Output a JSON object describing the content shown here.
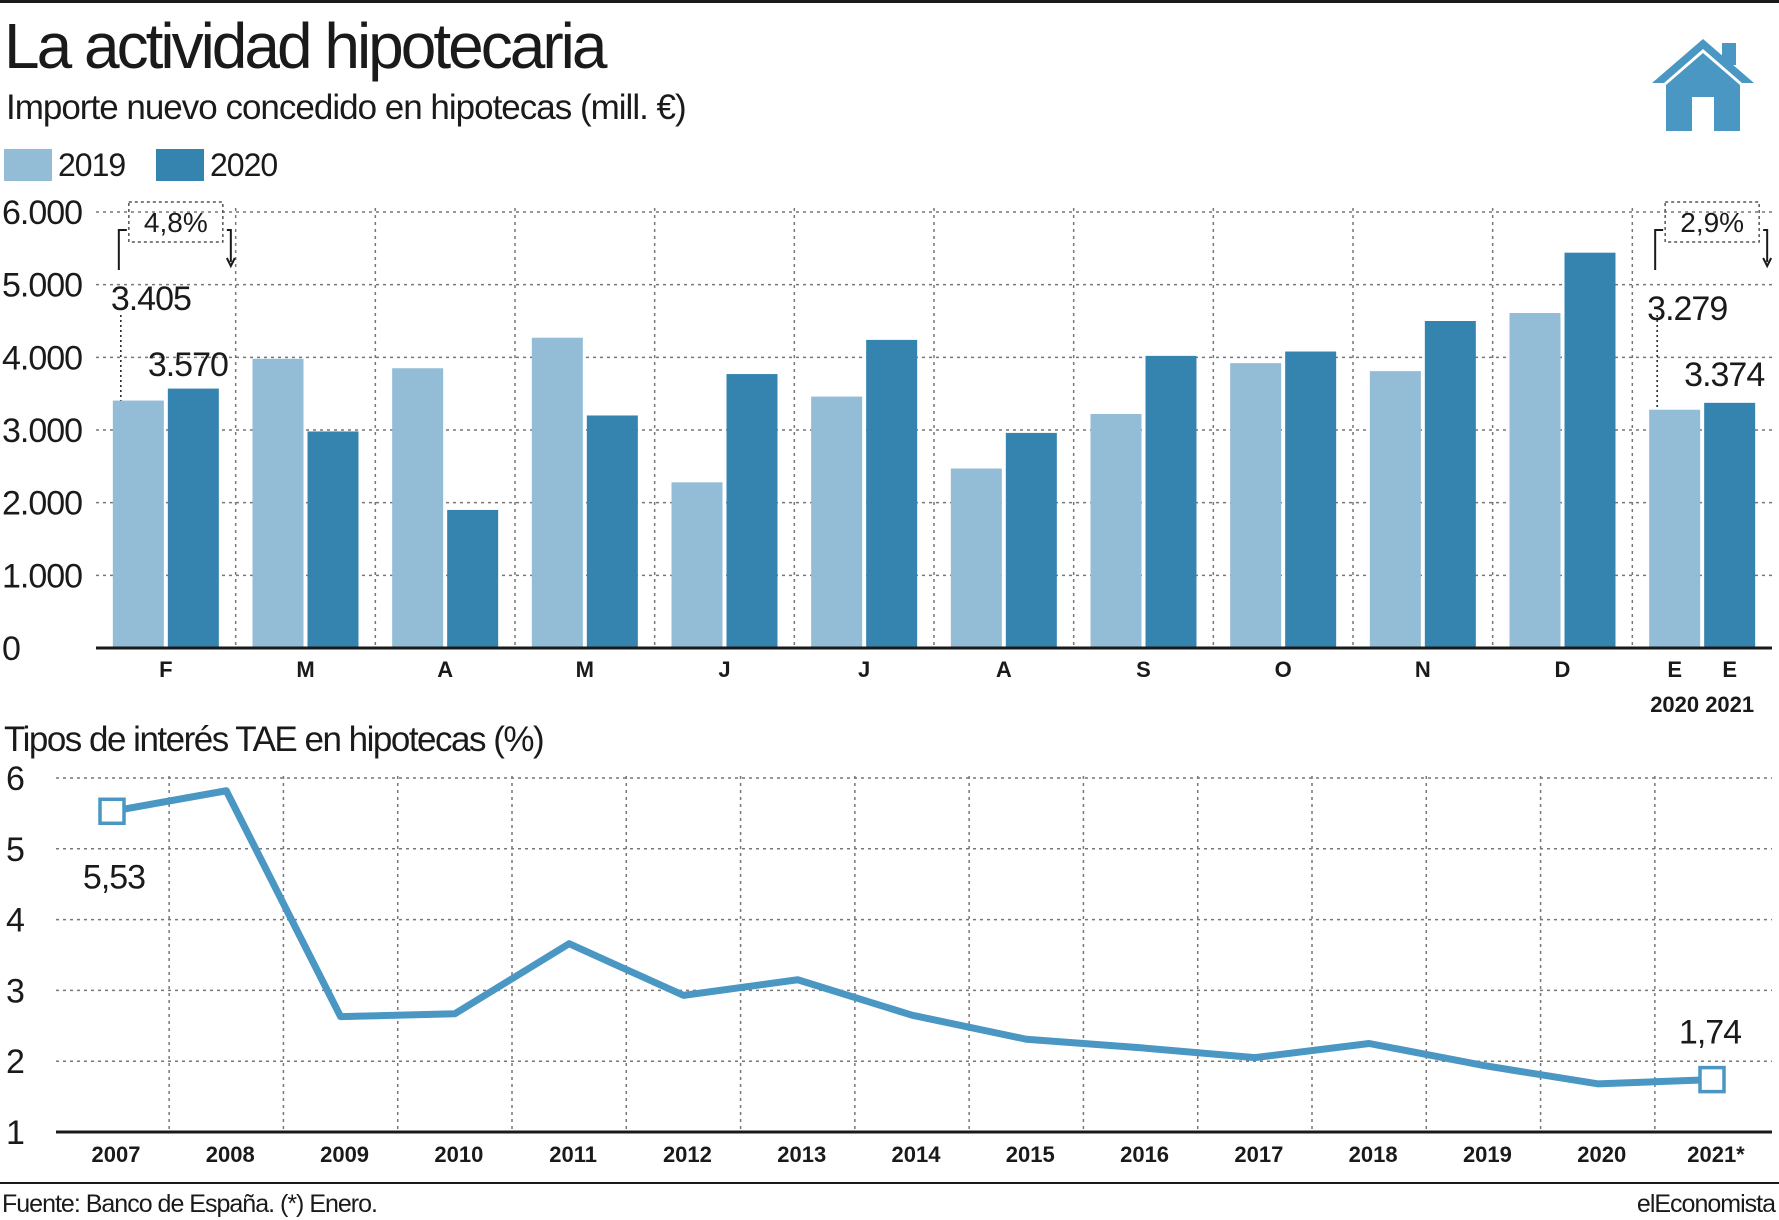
{
  "header": {
    "title": "La actividad hipotecaria",
    "subtitle": "Importe nuevo concedido en hipotecas (mill. €)"
  },
  "legend": [
    {
      "label": "2019",
      "color": "#93bcd6"
    },
    {
      "label": "2020",
      "color": "#3584b0"
    }
  ],
  "icons": {
    "brand_icon": "house-icon"
  },
  "chart_data": [
    {
      "type": "bar",
      "categories": [
        "F",
        "M",
        "A",
        "M",
        "J",
        "J",
        "A",
        "S",
        "O",
        "N",
        "D",
        "E"
      ],
      "category_sublabels": [
        "",
        "",
        "",
        "",
        "",
        "",
        "",
        "",
        "",
        "",
        "",
        ""
      ],
      "series": [
        {
          "name": "2019",
          "color": "#93bcd6",
          "values": [
            3405,
            3980,
            3850,
            4270,
            2280,
            3460,
            2470,
            3220,
            3920,
            3810,
            4610,
            3279
          ]
        },
        {
          "name": "2020",
          "color": "#3584b0",
          "values": [
            3570,
            2980,
            1900,
            3200,
            3770,
            4240,
            2960,
            4020,
            4080,
            4500,
            5440,
            3374
          ]
        }
      ],
      "last_group_labels": [
        {
          "label": "E",
          "sub": "2020"
        },
        {
          "label": "E",
          "sub": "2021"
        }
      ],
      "yticks": [
        "0",
        "1.000",
        "2.000",
        "3.000",
        "4.000",
        "5.000",
        "6.000"
      ],
      "ylim": [
        0,
        6000
      ],
      "grid": true,
      "annotations": [
        {
          "text": "3.405",
          "series": "2019",
          "category_index": 0
        },
        {
          "text": "3.570",
          "series": "2020",
          "category_index": 0
        },
        {
          "text": "4,8%",
          "kind": "change",
          "category_index": 0
        },
        {
          "text": "3.279",
          "series": "2019",
          "category_index": 11
        },
        {
          "text": "3.374",
          "series": "2020",
          "category_index": 11
        },
        {
          "text": "2,9%",
          "kind": "change",
          "category_index": 11
        }
      ]
    },
    {
      "type": "line",
      "title": "Tipos de interés TAE en hipotecas (%)",
      "x": [
        "2007",
        "2008",
        "2009",
        "2010",
        "2011",
        "2012",
        "2013",
        "2014",
        "2015",
        "2016",
        "2017",
        "2018",
        "2019",
        "2020",
        "2021*"
      ],
      "series": [
        {
          "name": "",
          "color": "#4a97c4",
          "values": [
            5.53,
            5.82,
            2.63,
            2.67,
            3.66,
            2.93,
            3.15,
            2.65,
            2.31,
            2.19,
            2.05,
            2.25,
            1.94,
            1.68,
            1.74
          ]
        }
      ],
      "ylim": [
        1,
        6
      ],
      "yticks": [
        "1",
        "2",
        "3",
        "4",
        "5",
        "6"
      ],
      "grid": true,
      "annotations": [
        {
          "text": "5,53",
          "index": 0
        },
        {
          "text": "1,74",
          "index": 14
        }
      ]
    }
  ],
  "footer": {
    "source": "Fuente: Banco de España. (*) Enero.",
    "brand": "elEconomista"
  }
}
